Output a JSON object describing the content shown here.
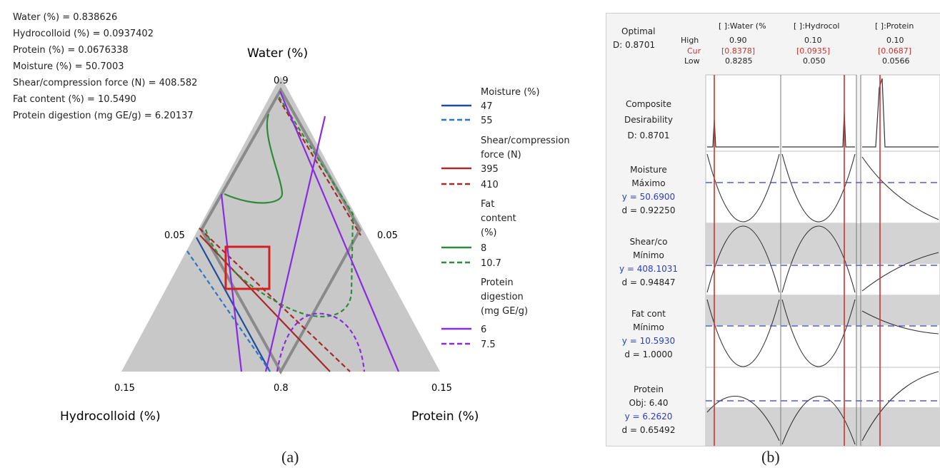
{
  "captions": {
    "a": "(a)",
    "b": "(b)"
  },
  "panel_a": {
    "readout": [
      "Water (%) = 0.838626",
      "Hydrocolloid (%) = 0.0937402",
      "Protein (%) = 0.0676338",
      "Moisture (%) = 50.7003",
      "Shear/compression force (N) = 408.582",
      "Fat content (%) = 10.5490",
      "Protein digestion (mg GE/g) = 6.20137"
    ],
    "axis_titles": {
      "top": "Water (%)",
      "left": "Hydrocolloid (%)",
      "right": "Protein (%)"
    },
    "ticks": {
      "top": "0.9",
      "mid_left": "0.05",
      "mid_right": "0.05",
      "bottom_left": "0.15",
      "bottom_center": "0.8",
      "bottom_right": "0.15"
    },
    "legend": [
      {
        "title": [
          "Moisture (%)"
        ],
        "items": [
          {
            "label": "47",
            "color": "#1f4e9c",
            "dash": false
          },
          {
            "label": "55",
            "color": "#2e75c6",
            "dash": true
          }
        ]
      },
      {
        "title": [
          "Shear/compression",
          "force (N)"
        ],
        "items": [
          {
            "label": "395",
            "color": "#a52a2a",
            "dash": false
          },
          {
            "label": "410",
            "color": "#a52a2a",
            "dash": true
          }
        ]
      },
      {
        "title": [
          "Fat",
          "content",
          "(%)"
        ],
        "items": [
          {
            "label": "8",
            "color": "#2e8b3a",
            "dash": false
          },
          {
            "label": "10.7",
            "color": "#2e8b3a",
            "dash": true
          }
        ]
      },
      {
        "title": [
          "Protein",
          "digestion",
          "(mg GE/g)"
        ],
        "items": [
          {
            "label": "6",
            "color": "#8a2be2",
            "dash": false
          },
          {
            "label": "7.5",
            "color": "#8a2be2",
            "dash": true
          }
        ]
      }
    ]
  },
  "panel_b": {
    "optimal": {
      "label": "Optimal",
      "d": "D: 0.8701"
    },
    "row_labels": {
      "high": "High",
      "cur": "Cur",
      "low": "Low"
    },
    "factors": [
      {
        "name": "[ ]:Water (%",
        "high": "0.90",
        "cur": "[0.8378]",
        "low": "0.8285"
      },
      {
        "name": "[ ]:Hydrocol",
        "high": "0.10",
        "cur": "[0.0935]",
        "low": "0.050"
      },
      {
        "name": "[ ]:Protein",
        "high": "0.10",
        "cur": "[0.0687]",
        "low": "0.0566"
      }
    ],
    "responses": [
      {
        "lines": [
          "Composite",
          "Desirability",
          "D: 0.8701"
        ]
      },
      {
        "lines": [
          "Moisture",
          "Máximo",
          "y = 50.6900",
          "d = 0.92250"
        ]
      },
      {
        "lines": [
          "Shear/co",
          "Mínimo",
          "y = 408.1031",
          "d = 0.94847"
        ]
      },
      {
        "lines": [
          "Fat cont",
          "Mínimo",
          "y = 10.5930",
          "d = 1.0000"
        ]
      },
      {
        "lines": [
          "Protein",
          "Obj: 6.40",
          "y = 6.2620",
          "d = 0.65492"
        ]
      }
    ],
    "colors": {
      "cur": "#d0312d",
      "predicted": "#2b3ec9",
      "ref_line": "#2b3ec9",
      "shade": "#d3d3d3"
    }
  },
  "chart_data": [
    {
      "type": "ternary_contour",
      "title": "",
      "axes": [
        "Water (%)",
        "Hydrocolloid (%)",
        "Protein (%)"
      ],
      "vertex_values": {
        "water_top": 0.9,
        "hydrocolloid_left": 0.15,
        "protein_right": 0.15,
        "water_bottom": 0.8
      },
      "contours": [
        {
          "response": "Moisture (%)",
          "levels": [
            47,
            55
          ]
        },
        {
          "response": "Shear/compression force (N)",
          "levels": [
            395,
            410
          ]
        },
        {
          "response": "Fat content (%)",
          "levels": [
            8,
            10.7
          ]
        },
        {
          "response": "Protein digestion (mg GE/g)",
          "levels": [
            6,
            7.5
          ]
        }
      ],
      "optimum": {
        "water": 0.838626,
        "hydrocolloid": 0.0937402,
        "protein": 0.0676338
      }
    },
    {
      "type": "optimization_plot",
      "composite_desirability": 0.8701,
      "factors": [
        {
          "name": "Water (%)",
          "low": 0.8285,
          "high": 0.9,
          "current": 0.8378
        },
        {
          "name": "Hydrocolloid (%)",
          "low": 0.05,
          "high": 0.1,
          "current": 0.0935
        },
        {
          "name": "Protein (%)",
          "low": 0.0566,
          "high": 0.1,
          "current": 0.0687
        }
      ],
      "responses": [
        {
          "name": "Moisture",
          "goal": "Máximo",
          "y": 50.69,
          "d": 0.9225
        },
        {
          "name": "Shear/co",
          "goal": "Mínimo",
          "y": 408.1031,
          "d": 0.94847
        },
        {
          "name": "Fat cont",
          "goal": "Mínimo",
          "y": 10.593,
          "d": 1.0
        },
        {
          "name": "Protein",
          "goal": "Obj: 6.40",
          "y": 6.262,
          "d": 0.65492
        }
      ]
    }
  ]
}
